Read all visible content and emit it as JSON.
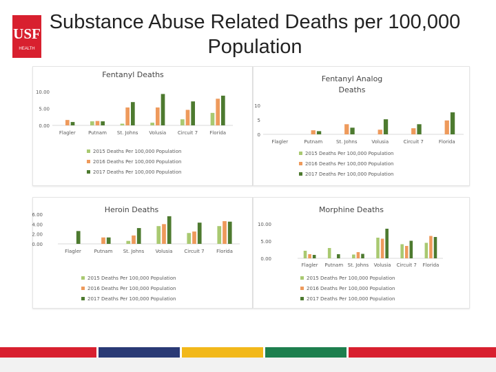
{
  "slide": {
    "title": "Substance Abuse Related Deaths per 100,000 Population",
    "logo_text": "USF",
    "logo_subtitle": "HEALTH",
    "stripe_colors": [
      "#d8202f",
      "#2a3a75",
      "#f2b81a",
      "#1d7f4e",
      "#cfd0d4",
      "#d8202f"
    ]
  },
  "series_names": [
    "2015 Deaths Per 100,000 Population",
    "2016 Deaths Per 100,000 Population",
    "2017 Deaths Per 100,000 Population"
  ],
  "series_colors": [
    "#a9c971",
    "#ee9a5c",
    "#4d7a2f"
  ],
  "chart_data": [
    {
      "type": "bar",
      "title": "Fentanyl Deaths",
      "categories": [
        "Flagler",
        "Putnam",
        "St. Johns",
        "Volusia",
        "Circuit 7",
        "Florida"
      ],
      "ylim": [
        0,
        10
      ],
      "yticks": [
        "0.00",
        "5.00",
        "10.00"
      ],
      "legend_position": "bottom",
      "series": [
        {
          "name": "2015 Deaths Per 100,000 Population",
          "values": [
            0.0,
            1.2,
            0.5,
            0.8,
            1.8,
            3.7
          ]
        },
        {
          "name": "2016 Deaths Per 100,000 Population",
          "values": [
            1.6,
            1.3,
            5.3,
            5.3,
            4.6,
            7.9
          ]
        },
        {
          "name": "2017 Deaths Per 100,000 Population",
          "values": [
            1.0,
            1.2,
            6.9,
            9.3,
            7.1,
            8.8
          ]
        }
      ]
    },
    {
      "type": "bar",
      "title": "Fentanyl Analog Deaths",
      "categories": [
        "Flagler",
        "Putnam",
        "St. Johns",
        "Volusia",
        "Circuit 7",
        "Florida"
      ],
      "ylim": [
        0,
        10
      ],
      "yticks": [
        "0",
        "5",
        "10"
      ],
      "legend_position": "bottom",
      "series": [
        {
          "name": "2015 Deaths Per 100,000 Population",
          "values": [
            0,
            0,
            0,
            0,
            0,
            0
          ]
        },
        {
          "name": "2016 Deaths Per 100,000 Population",
          "values": [
            0,
            1.4,
            3.5,
            1.6,
            2.1,
            4.8
          ]
        },
        {
          "name": "2017 Deaths Per 100,000 Population",
          "values": [
            0,
            1.1,
            2.3,
            5.2,
            3.5,
            7.6
          ]
        }
      ]
    },
    {
      "type": "bar",
      "title": "Heroin Deaths",
      "categories": [
        "Flagler",
        "Putnam",
        "St. Johns",
        "Volusia",
        "Circuit 7",
        "Florida"
      ],
      "ylim": [
        0,
        6
      ],
      "yticks": [
        "0.00",
        "2.00",
        "4.00",
        "6.00"
      ],
      "legend_position": "bottom",
      "series": [
        {
          "name": "2015 Deaths Per 100,000 Population",
          "values": [
            0.0,
            0.0,
            0.6,
            3.6,
            2.2,
            3.6
          ]
        },
        {
          "name": "2016 Deaths Per 100,000 Population",
          "values": [
            0.0,
            1.3,
            1.7,
            4.0,
            2.5,
            4.6
          ]
        },
        {
          "name": "2017 Deaths Per 100,000 Population",
          "values": [
            2.6,
            1.3,
            3.2,
            5.6,
            4.3,
            4.5
          ]
        }
      ]
    },
    {
      "type": "bar",
      "title": "Morphine Deaths",
      "categories": [
        "Flagler",
        "Putnam",
        "St. Johns",
        "Volusia",
        "Circuit 7",
        "Florida"
      ],
      "ylim": [
        0,
        10
      ],
      "yticks": [
        "0.00",
        "5.00",
        "10.00"
      ],
      "legend_position": "bottom",
      "series": [
        {
          "name": "2015 Deaths Per 100,000 Population",
          "values": [
            2.2,
            3.0,
            1.1,
            6.0,
            4.1,
            4.5
          ]
        },
        {
          "name": "2016 Deaths Per 100,000 Population",
          "values": [
            1.2,
            0.0,
            1.8,
            5.7,
            3.6,
            6.5
          ]
        },
        {
          "name": "2017 Deaths Per 100,000 Population",
          "values": [
            1.0,
            1.2,
            1.3,
            8.6,
            5.1,
            6.2
          ]
        }
      ]
    }
  ]
}
